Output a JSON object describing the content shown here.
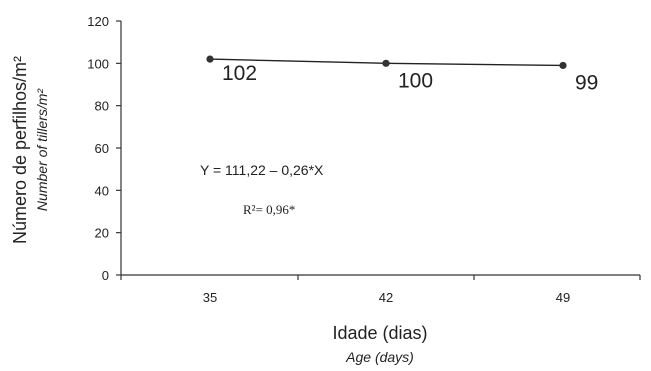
{
  "chart_data": {
    "type": "line",
    "x": [
      35,
      42,
      49
    ],
    "values": [
      102,
      100,
      99
    ],
    "data_labels": [
      "102",
      "100",
      "99"
    ],
    "x_ticks": [
      "35",
      "42",
      "49"
    ],
    "y_ticks": [
      "0",
      "20",
      "40",
      "60",
      "80",
      "100",
      "120"
    ],
    "ylim": [
      0,
      120
    ],
    "ylabel": "Número de perfilhos/m²",
    "ylabel_en": "Number of tillers/m²",
    "xlabel": "Idade (dias)",
    "xlabel_en": "Age (days)",
    "equation": "Y =  111,22 – 0,26*X",
    "r_squared": "R²= 0,96*",
    "grid": false,
    "colors": {
      "line": "#222222",
      "marker": "#333333"
    }
  }
}
